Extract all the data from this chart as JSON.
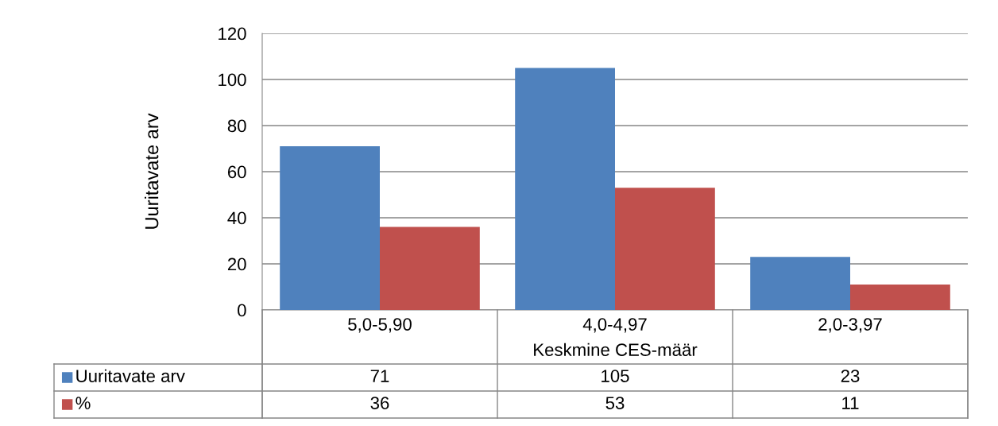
{
  "chart_data": {
    "type": "bar",
    "xlabel": "Keskmine CES-määr",
    "ylabel": "Uuritavate arv",
    "categories": [
      "5,0-5,90",
      "4,0-4,97",
      "2,0-3,97"
    ],
    "series": [
      {
        "name": "Uuritavate arv",
        "color": "#4f81bd",
        "values": [
          71,
          105,
          23
        ]
      },
      {
        "name": "%",
        "color": "#c0504d",
        "values": [
          36,
          53,
          11
        ]
      }
    ],
    "ylim": [
      0,
      120
    ],
    "yticks": [
      0,
      20,
      40,
      60,
      80,
      100,
      120
    ],
    "grid": "y",
    "data_labels": true,
    "legend": "bottom"
  }
}
